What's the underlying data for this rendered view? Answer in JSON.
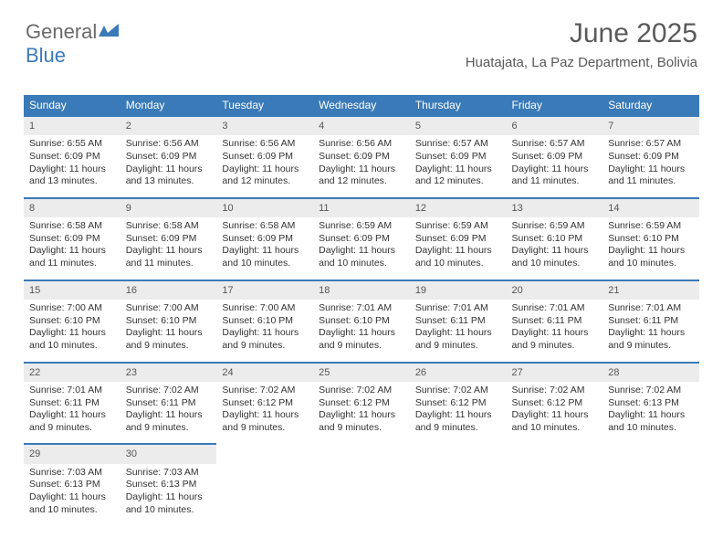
{
  "logo": {
    "part1": "General",
    "part2": "Blue"
  },
  "title": "June 2025",
  "subtitle": "Huatajata, La Paz Department, Bolivia",
  "colors": {
    "header_bg": "#3a7ab8",
    "daynum_bg": "#ececec",
    "text": "#333333",
    "title_color": "#5a5a5a",
    "border": "#3a7ab8"
  },
  "day_headers": [
    "Sunday",
    "Monday",
    "Tuesday",
    "Wednesday",
    "Thursday",
    "Friday",
    "Saturday"
  ],
  "weeks": [
    [
      {
        "num": "1",
        "sunrise": "Sunrise: 6:55 AM",
        "sunset": "Sunset: 6:09 PM",
        "daylight1": "Daylight: 11 hours",
        "daylight2": "and 13 minutes."
      },
      {
        "num": "2",
        "sunrise": "Sunrise: 6:56 AM",
        "sunset": "Sunset: 6:09 PM",
        "daylight1": "Daylight: 11 hours",
        "daylight2": "and 13 minutes."
      },
      {
        "num": "3",
        "sunrise": "Sunrise: 6:56 AM",
        "sunset": "Sunset: 6:09 PM",
        "daylight1": "Daylight: 11 hours",
        "daylight2": "and 12 minutes."
      },
      {
        "num": "4",
        "sunrise": "Sunrise: 6:56 AM",
        "sunset": "Sunset: 6:09 PM",
        "daylight1": "Daylight: 11 hours",
        "daylight2": "and 12 minutes."
      },
      {
        "num": "5",
        "sunrise": "Sunrise: 6:57 AM",
        "sunset": "Sunset: 6:09 PM",
        "daylight1": "Daylight: 11 hours",
        "daylight2": "and 12 minutes."
      },
      {
        "num": "6",
        "sunrise": "Sunrise: 6:57 AM",
        "sunset": "Sunset: 6:09 PM",
        "daylight1": "Daylight: 11 hours",
        "daylight2": "and 11 minutes."
      },
      {
        "num": "7",
        "sunrise": "Sunrise: 6:57 AM",
        "sunset": "Sunset: 6:09 PM",
        "daylight1": "Daylight: 11 hours",
        "daylight2": "and 11 minutes."
      }
    ],
    [
      {
        "num": "8",
        "sunrise": "Sunrise: 6:58 AM",
        "sunset": "Sunset: 6:09 PM",
        "daylight1": "Daylight: 11 hours",
        "daylight2": "and 11 minutes."
      },
      {
        "num": "9",
        "sunrise": "Sunrise: 6:58 AM",
        "sunset": "Sunset: 6:09 PM",
        "daylight1": "Daylight: 11 hours",
        "daylight2": "and 11 minutes."
      },
      {
        "num": "10",
        "sunrise": "Sunrise: 6:58 AM",
        "sunset": "Sunset: 6:09 PM",
        "daylight1": "Daylight: 11 hours",
        "daylight2": "and 10 minutes."
      },
      {
        "num": "11",
        "sunrise": "Sunrise: 6:59 AM",
        "sunset": "Sunset: 6:09 PM",
        "daylight1": "Daylight: 11 hours",
        "daylight2": "and 10 minutes."
      },
      {
        "num": "12",
        "sunrise": "Sunrise: 6:59 AM",
        "sunset": "Sunset: 6:09 PM",
        "daylight1": "Daylight: 11 hours",
        "daylight2": "and 10 minutes."
      },
      {
        "num": "13",
        "sunrise": "Sunrise: 6:59 AM",
        "sunset": "Sunset: 6:10 PM",
        "daylight1": "Daylight: 11 hours",
        "daylight2": "and 10 minutes."
      },
      {
        "num": "14",
        "sunrise": "Sunrise: 6:59 AM",
        "sunset": "Sunset: 6:10 PM",
        "daylight1": "Daylight: 11 hours",
        "daylight2": "and 10 minutes."
      }
    ],
    [
      {
        "num": "15",
        "sunrise": "Sunrise: 7:00 AM",
        "sunset": "Sunset: 6:10 PM",
        "daylight1": "Daylight: 11 hours",
        "daylight2": "and 10 minutes."
      },
      {
        "num": "16",
        "sunrise": "Sunrise: 7:00 AM",
        "sunset": "Sunset: 6:10 PM",
        "daylight1": "Daylight: 11 hours",
        "daylight2": "and 9 minutes."
      },
      {
        "num": "17",
        "sunrise": "Sunrise: 7:00 AM",
        "sunset": "Sunset: 6:10 PM",
        "daylight1": "Daylight: 11 hours",
        "daylight2": "and 9 minutes."
      },
      {
        "num": "18",
        "sunrise": "Sunrise: 7:01 AM",
        "sunset": "Sunset: 6:10 PM",
        "daylight1": "Daylight: 11 hours",
        "daylight2": "and 9 minutes."
      },
      {
        "num": "19",
        "sunrise": "Sunrise: 7:01 AM",
        "sunset": "Sunset: 6:11 PM",
        "daylight1": "Daylight: 11 hours",
        "daylight2": "and 9 minutes."
      },
      {
        "num": "20",
        "sunrise": "Sunrise: 7:01 AM",
        "sunset": "Sunset: 6:11 PM",
        "daylight1": "Daylight: 11 hours",
        "daylight2": "and 9 minutes."
      },
      {
        "num": "21",
        "sunrise": "Sunrise: 7:01 AM",
        "sunset": "Sunset: 6:11 PM",
        "daylight1": "Daylight: 11 hours",
        "daylight2": "and 9 minutes."
      }
    ],
    [
      {
        "num": "22",
        "sunrise": "Sunrise: 7:01 AM",
        "sunset": "Sunset: 6:11 PM",
        "daylight1": "Daylight: 11 hours",
        "daylight2": "and 9 minutes."
      },
      {
        "num": "23",
        "sunrise": "Sunrise: 7:02 AM",
        "sunset": "Sunset: 6:11 PM",
        "daylight1": "Daylight: 11 hours",
        "daylight2": "and 9 minutes."
      },
      {
        "num": "24",
        "sunrise": "Sunrise: 7:02 AM",
        "sunset": "Sunset: 6:12 PM",
        "daylight1": "Daylight: 11 hours",
        "daylight2": "and 9 minutes."
      },
      {
        "num": "25",
        "sunrise": "Sunrise: 7:02 AM",
        "sunset": "Sunset: 6:12 PM",
        "daylight1": "Daylight: 11 hours",
        "daylight2": "and 9 minutes."
      },
      {
        "num": "26",
        "sunrise": "Sunrise: 7:02 AM",
        "sunset": "Sunset: 6:12 PM",
        "daylight1": "Daylight: 11 hours",
        "daylight2": "and 9 minutes."
      },
      {
        "num": "27",
        "sunrise": "Sunrise: 7:02 AM",
        "sunset": "Sunset: 6:12 PM",
        "daylight1": "Daylight: 11 hours",
        "daylight2": "and 10 minutes."
      },
      {
        "num": "28",
        "sunrise": "Sunrise: 7:02 AM",
        "sunset": "Sunset: 6:13 PM",
        "daylight1": "Daylight: 11 hours",
        "daylight2": "and 10 minutes."
      }
    ],
    [
      {
        "num": "29",
        "sunrise": "Sunrise: 7:03 AM",
        "sunset": "Sunset: 6:13 PM",
        "daylight1": "Daylight: 11 hours",
        "daylight2": "and 10 minutes."
      },
      {
        "num": "30",
        "sunrise": "Sunrise: 7:03 AM",
        "sunset": "Sunset: 6:13 PM",
        "daylight1": "Daylight: 11 hours",
        "daylight2": "and 10 minutes."
      },
      null,
      null,
      null,
      null,
      null
    ]
  ]
}
